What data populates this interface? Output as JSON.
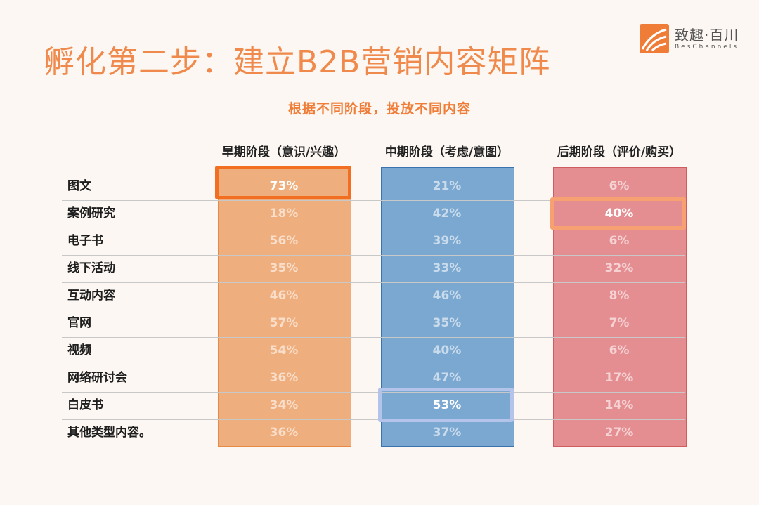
{
  "page": {
    "title": "孵化第二步：建立B2B营销内容矩阵",
    "logo": {
      "name": "致趣·百川",
      "sub": "BesChannels"
    }
  },
  "colors": {
    "early": "#efae7d",
    "mid": "#7ba8d0",
    "late": "#e58e92",
    "title": "#ef8a4c"
  },
  "chart_data": {
    "type": "table",
    "title": "根据不同阶段，投放不同内容",
    "columns": [
      "早期阶段（意识/兴趣）",
      "中期阶段（考虑/意图）",
      "后期阶段（评价/购买）"
    ],
    "rows": [
      {
        "label": "图文",
        "values": [
          "73%",
          "21%",
          "6%"
        ]
      },
      {
        "label": "案例研究",
        "values": [
          "18%",
          "42%",
          "40%"
        ]
      },
      {
        "label": "电子书",
        "values": [
          "56%",
          "39%",
          "6%"
        ]
      },
      {
        "label": "线下活动",
        "values": [
          "35%",
          "33%",
          "32%"
        ]
      },
      {
        "label": "互动内容",
        "values": [
          "46%",
          "46%",
          "8%"
        ]
      },
      {
        "label": "官网",
        "values": [
          "57%",
          "35%",
          "7%"
        ]
      },
      {
        "label": "视频",
        "values": [
          "54%",
          "40%",
          "6%"
        ]
      },
      {
        "label": "网络研讨会",
        "values": [
          "36%",
          "47%",
          "17%"
        ]
      },
      {
        "label": "白皮书",
        "values": [
          "34%",
          "53%",
          "14%"
        ]
      },
      {
        "label": "其他类型内容。",
        "values": [
          "36%",
          "37%",
          "27%"
        ]
      }
    ],
    "highlights": [
      {
        "row": "图文",
        "column": "早期阶段（意识/兴趣）",
        "value": "73%"
      },
      {
        "row": "案例研究",
        "column": "后期阶段（评价/购买）",
        "value": "40%"
      },
      {
        "row": "白皮书",
        "column": "中期阶段（考虑/意图）",
        "value": "53%"
      }
    ]
  }
}
